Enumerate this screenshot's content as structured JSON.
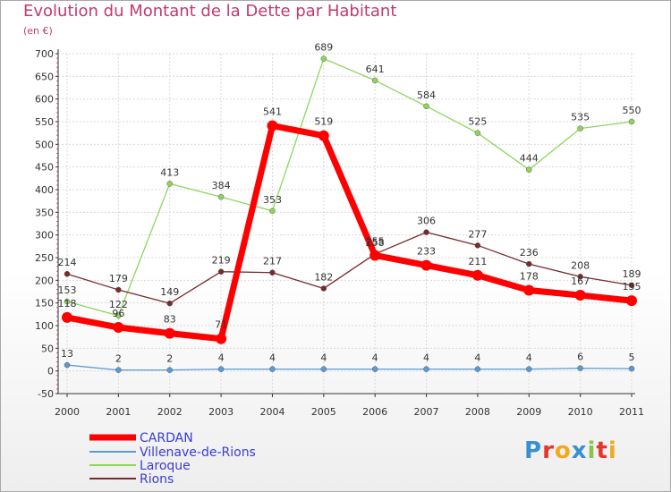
{
  "chart_data": {
    "type": "line",
    "title": "Evolution du Montant de la Dette par Habitant",
    "subtitle": "(en €)",
    "x": [
      "2000",
      "2001",
      "2002",
      "2003",
      "2004",
      "2005",
      "2006",
      "2007",
      "2008",
      "2009",
      "2010",
      "2011"
    ],
    "ylim": [
      -50,
      700
    ],
    "yticks": [
      -50,
      0,
      50,
      100,
      150,
      200,
      250,
      300,
      350,
      400,
      450,
      500,
      550,
      600,
      650,
      700
    ],
    "grid": true,
    "legend_position": "bottom-left",
    "series": [
      {
        "name": "CARDAN",
        "color": "#ff0000",
        "values": [
          118,
          96,
          83,
          71,
          541,
          519,
          255,
          233,
          211,
          178,
          167,
          155
        ],
        "labels": [
          "118",
          "96",
          "83",
          "71",
          "541",
          "519",
          "255",
          "233",
          "211",
          "178",
          "167",
          "155"
        ]
      },
      {
        "name": "Villenave-de-Rions",
        "color": "#5b9bd5",
        "values": [
          13,
          2,
          2,
          4,
          4,
          4,
          4,
          4,
          4,
          4,
          6,
          5
        ],
        "labels": [
          "13",
          "2",
          "2",
          "4",
          "4",
          "4",
          "4",
          "4",
          "4",
          "4",
          "6",
          "5"
        ]
      },
      {
        "name": "Laroque",
        "color": "#8ed65b",
        "values": [
          153,
          122,
          413,
          384,
          353,
          689,
          641,
          584,
          525,
          444,
          535,
          550
        ],
        "labels": [
          "153",
          "122",
          "413",
          "384",
          "353",
          "689",
          "641",
          "584",
          "525",
          "444",
          "535",
          "550"
        ]
      },
      {
        "name": "Rions",
        "color": "#7a2a2a",
        "values": [
          214,
          179,
          149,
          219,
          217,
          182,
          258,
          306,
          277,
          236,
          208,
          189
        ],
        "labels": [
          "214",
          "179",
          "149",
          "219",
          "217",
          "182",
          "258",
          "306",
          "277",
          "236",
          "208",
          "189"
        ]
      }
    ]
  },
  "logo": {
    "letters": [
      "P",
      "r",
      "o",
      "x",
      "i",
      "t",
      "i"
    ],
    "colors": [
      "#3a8fd0",
      "#e8352b",
      "#f4a81c",
      "#3a8fd0",
      "#8bc34a",
      "#e8352b",
      "#f4a81c"
    ]
  },
  "colors": {
    "title": "#c03a6f",
    "legend_text": "#3b3bd6",
    "axis": "#333333",
    "grid": "#d9d9d9"
  }
}
